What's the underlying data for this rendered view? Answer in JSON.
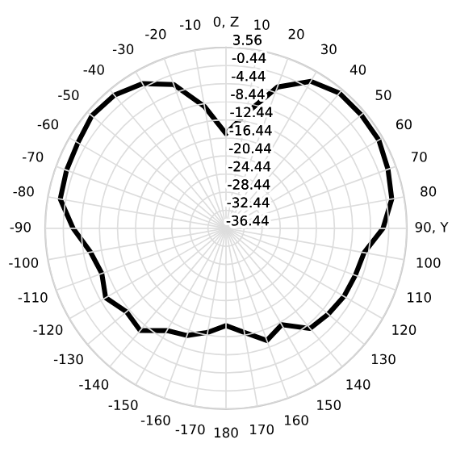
{
  "chart_data": {
    "type": "radar",
    "categories": [
      "0, Z",
      "10",
      "20",
      "30",
      "40",
      "50",
      "60",
      "70",
      "80",
      "90, Y",
      "100",
      "110",
      "120",
      "130",
      "140",
      "150",
      "160",
      "170",
      "180",
      "-170",
      "-160",
      "-150",
      "-140",
      "-130",
      "-120",
      "-110",
      "-100",
      "-90",
      "-80",
      "-70",
      "-60",
      "-50",
      "-40",
      "-30",
      "-20",
      "-10"
    ],
    "series": [
      {
        "color": "#000000",
        "values": [
          -15.5,
          -10.6,
          -3.2,
          1.1,
          2.6,
          2.6,
          2.6,
          1.7,
          0.8,
          -1.7,
          -5.4,
          -6,
          -6.3,
          -6.9,
          -7.5,
          -11.8,
          -10,
          -13.05,
          -14.9,
          -13.05,
          -11.2,
          -10.3,
          -6.9,
          -7.7,
          -5.7,
          -7.2,
          -6,
          -2.6,
          0.8,
          1.1,
          1.4,
          2.3,
          2,
          0.5,
          -2.6,
          -9.1
        ]
      }
    ],
    "ylim": [
      -36.44,
      3.56
    ],
    "yticks": [
      3.56,
      -0.44,
      -4.44,
      -8.44,
      -12.44,
      -16.44,
      -20.44,
      -24.44,
      -28.44,
      -32.44,
      -36.44
    ],
    "grid": true
  }
}
